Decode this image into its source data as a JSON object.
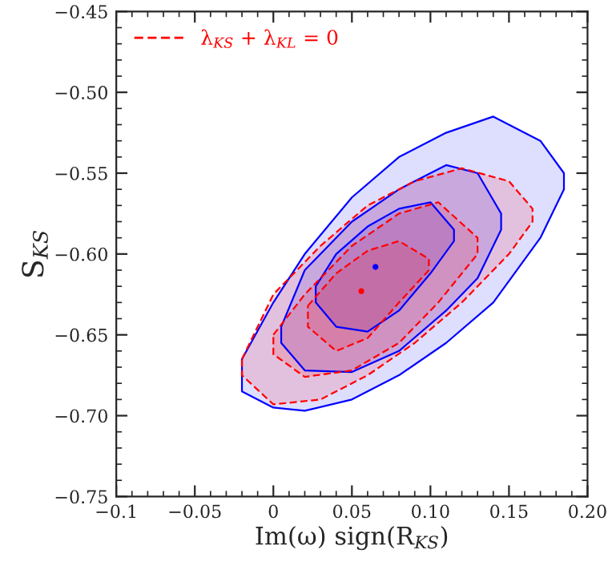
{
  "chart_data": {
    "type": "area",
    "xlabel": "Im(ω) sign(R$_{KS}$)",
    "ylabel": "S$_{KS}$",
    "xlim": [
      -0.1,
      0.2
    ],
    "ylim": [
      -0.75,
      -0.45
    ],
    "xticks": [
      {
        "value": -0.1,
        "label": "−0.1"
      },
      {
        "value": -0.05,
        "label": "−0.05"
      },
      0,
      {
        "value": 0.05,
        "label": "0.05"
      },
      {
        "value": 0.1,
        "label": "0.10"
      },
      {
        "value": 0.15,
        "label": "0.15"
      },
      {
        "value": 0.2,
        "label": "0.20"
      }
    ],
    "yticks": [
      {
        "value": -0.75,
        "label": "−0.75"
      },
      {
        "value": -0.7,
        "label": "−0.70"
      },
      {
        "value": -0.65,
        "label": "−0.65"
      },
      {
        "value": -0.6,
        "label": "−0.60"
      },
      {
        "value": -0.55,
        "label": "−0.55"
      },
      {
        "value": -0.5,
        "label": "−0.50"
      },
      {
        "value": -0.45,
        "label": "−0.45"
      }
    ],
    "grid": false,
    "legend": "top left",
    "series": [
      {
        "type": "area",
        "color": "#0000ff",
        "line_style": "solid",
        "x": [
          -0.02,
          0.0,
          0.02,
          0.05,
          0.08,
          0.11,
          0.14,
          0.17,
          0.185
        ],
        "values": [
          null,
          null,
          null,
          null,
          null,
          null,
          null,
          null,
          null
        ],
        "upper": [
          -0.665,
          -0.63,
          -0.6,
          -0.565,
          -0.54,
          -0.525,
          -0.515,
          -0.53,
          -0.55
        ],
        "lower": [
          -0.685,
          -0.695,
          -0.697,
          -0.69,
          -0.675,
          -0.655,
          -0.63,
          -0.59,
          -0.56
        ]
      },
      {
        "type": "area",
        "color": "#0000ff",
        "line_style": "solid",
        "x": [
          0.005,
          0.02,
          0.05,
          0.08,
          0.11,
          0.13,
          0.145
        ],
        "values": [
          null,
          null,
          null,
          null,
          null,
          null,
          null
        ],
        "upper": [
          -0.645,
          -0.61,
          -0.58,
          -0.56,
          -0.545,
          -0.55,
          -0.575
        ],
        "lower": [
          -0.655,
          -0.672,
          -0.673,
          -0.66,
          -0.635,
          -0.615,
          -0.585
        ]
      },
      {
        "type": "area",
        "color": "#0000ff",
        "line_style": "solid",
        "x": [
          0.027,
          0.04,
          0.06,
          0.08,
          0.1,
          0.115
        ],
        "values": [
          null,
          null,
          null,
          null,
          null,
          null
        ],
        "upper": [
          -0.62,
          -0.6,
          -0.583,
          -0.572,
          -0.568,
          -0.585
        ],
        "lower": [
          -0.63,
          -0.645,
          -0.648,
          -0.635,
          -0.612,
          -0.592
        ]
      },
      {
        "type": "area",
        "name": "λ$_{KS}$ + λ$_{KL}$ = 0",
        "color": "#ff0000",
        "line_style": "dashed",
        "x": [
          -0.02,
          0.0,
          0.03,
          0.06,
          0.09,
          0.12,
          0.15,
          0.165
        ],
        "values": [
          null,
          null,
          null,
          null,
          null,
          null,
          null,
          null
        ],
        "upper": [
          -0.665,
          -0.625,
          -0.595,
          -0.57,
          -0.555,
          -0.547,
          -0.555,
          -0.572
        ],
        "lower": [
          -0.675,
          -0.693,
          -0.69,
          -0.675,
          -0.655,
          -0.63,
          -0.6,
          -0.58
        ]
      },
      {
        "type": "area",
        "color": "#ff0000",
        "line_style": "dashed",
        "x": [
          0.0,
          0.02,
          0.05,
          0.08,
          0.105,
          0.13
        ],
        "values": [
          null,
          null,
          null,
          null,
          null,
          null
        ],
        "upper": [
          -0.65,
          -0.625,
          -0.595,
          -0.575,
          -0.568,
          -0.59
        ],
        "lower": [
          -0.662,
          -0.676,
          -0.672,
          -0.655,
          -0.63,
          -0.6
        ]
      },
      {
        "type": "area",
        "color": "#ff0000",
        "line_style": "dashed",
        "x": [
          0.022,
          0.04,
          0.06,
          0.08,
          0.099
        ],
        "values": [
          null,
          null,
          null,
          null,
          null
        ],
        "upper": [
          -0.632,
          -0.612,
          -0.598,
          -0.592,
          -0.603
        ],
        "lower": [
          -0.645,
          -0.66,
          -0.652,
          -0.63,
          -0.61
        ]
      },
      {
        "type": "scatter",
        "color": "#0000ff",
        "marker": "circle",
        "x": [
          0.065
        ],
        "values": [
          -0.608
        ]
      },
      {
        "type": "scatter",
        "color": "#ff0000",
        "marker": "circle",
        "x": [
          0.056
        ],
        "values": [
          -0.623
        ]
      }
    ]
  }
}
